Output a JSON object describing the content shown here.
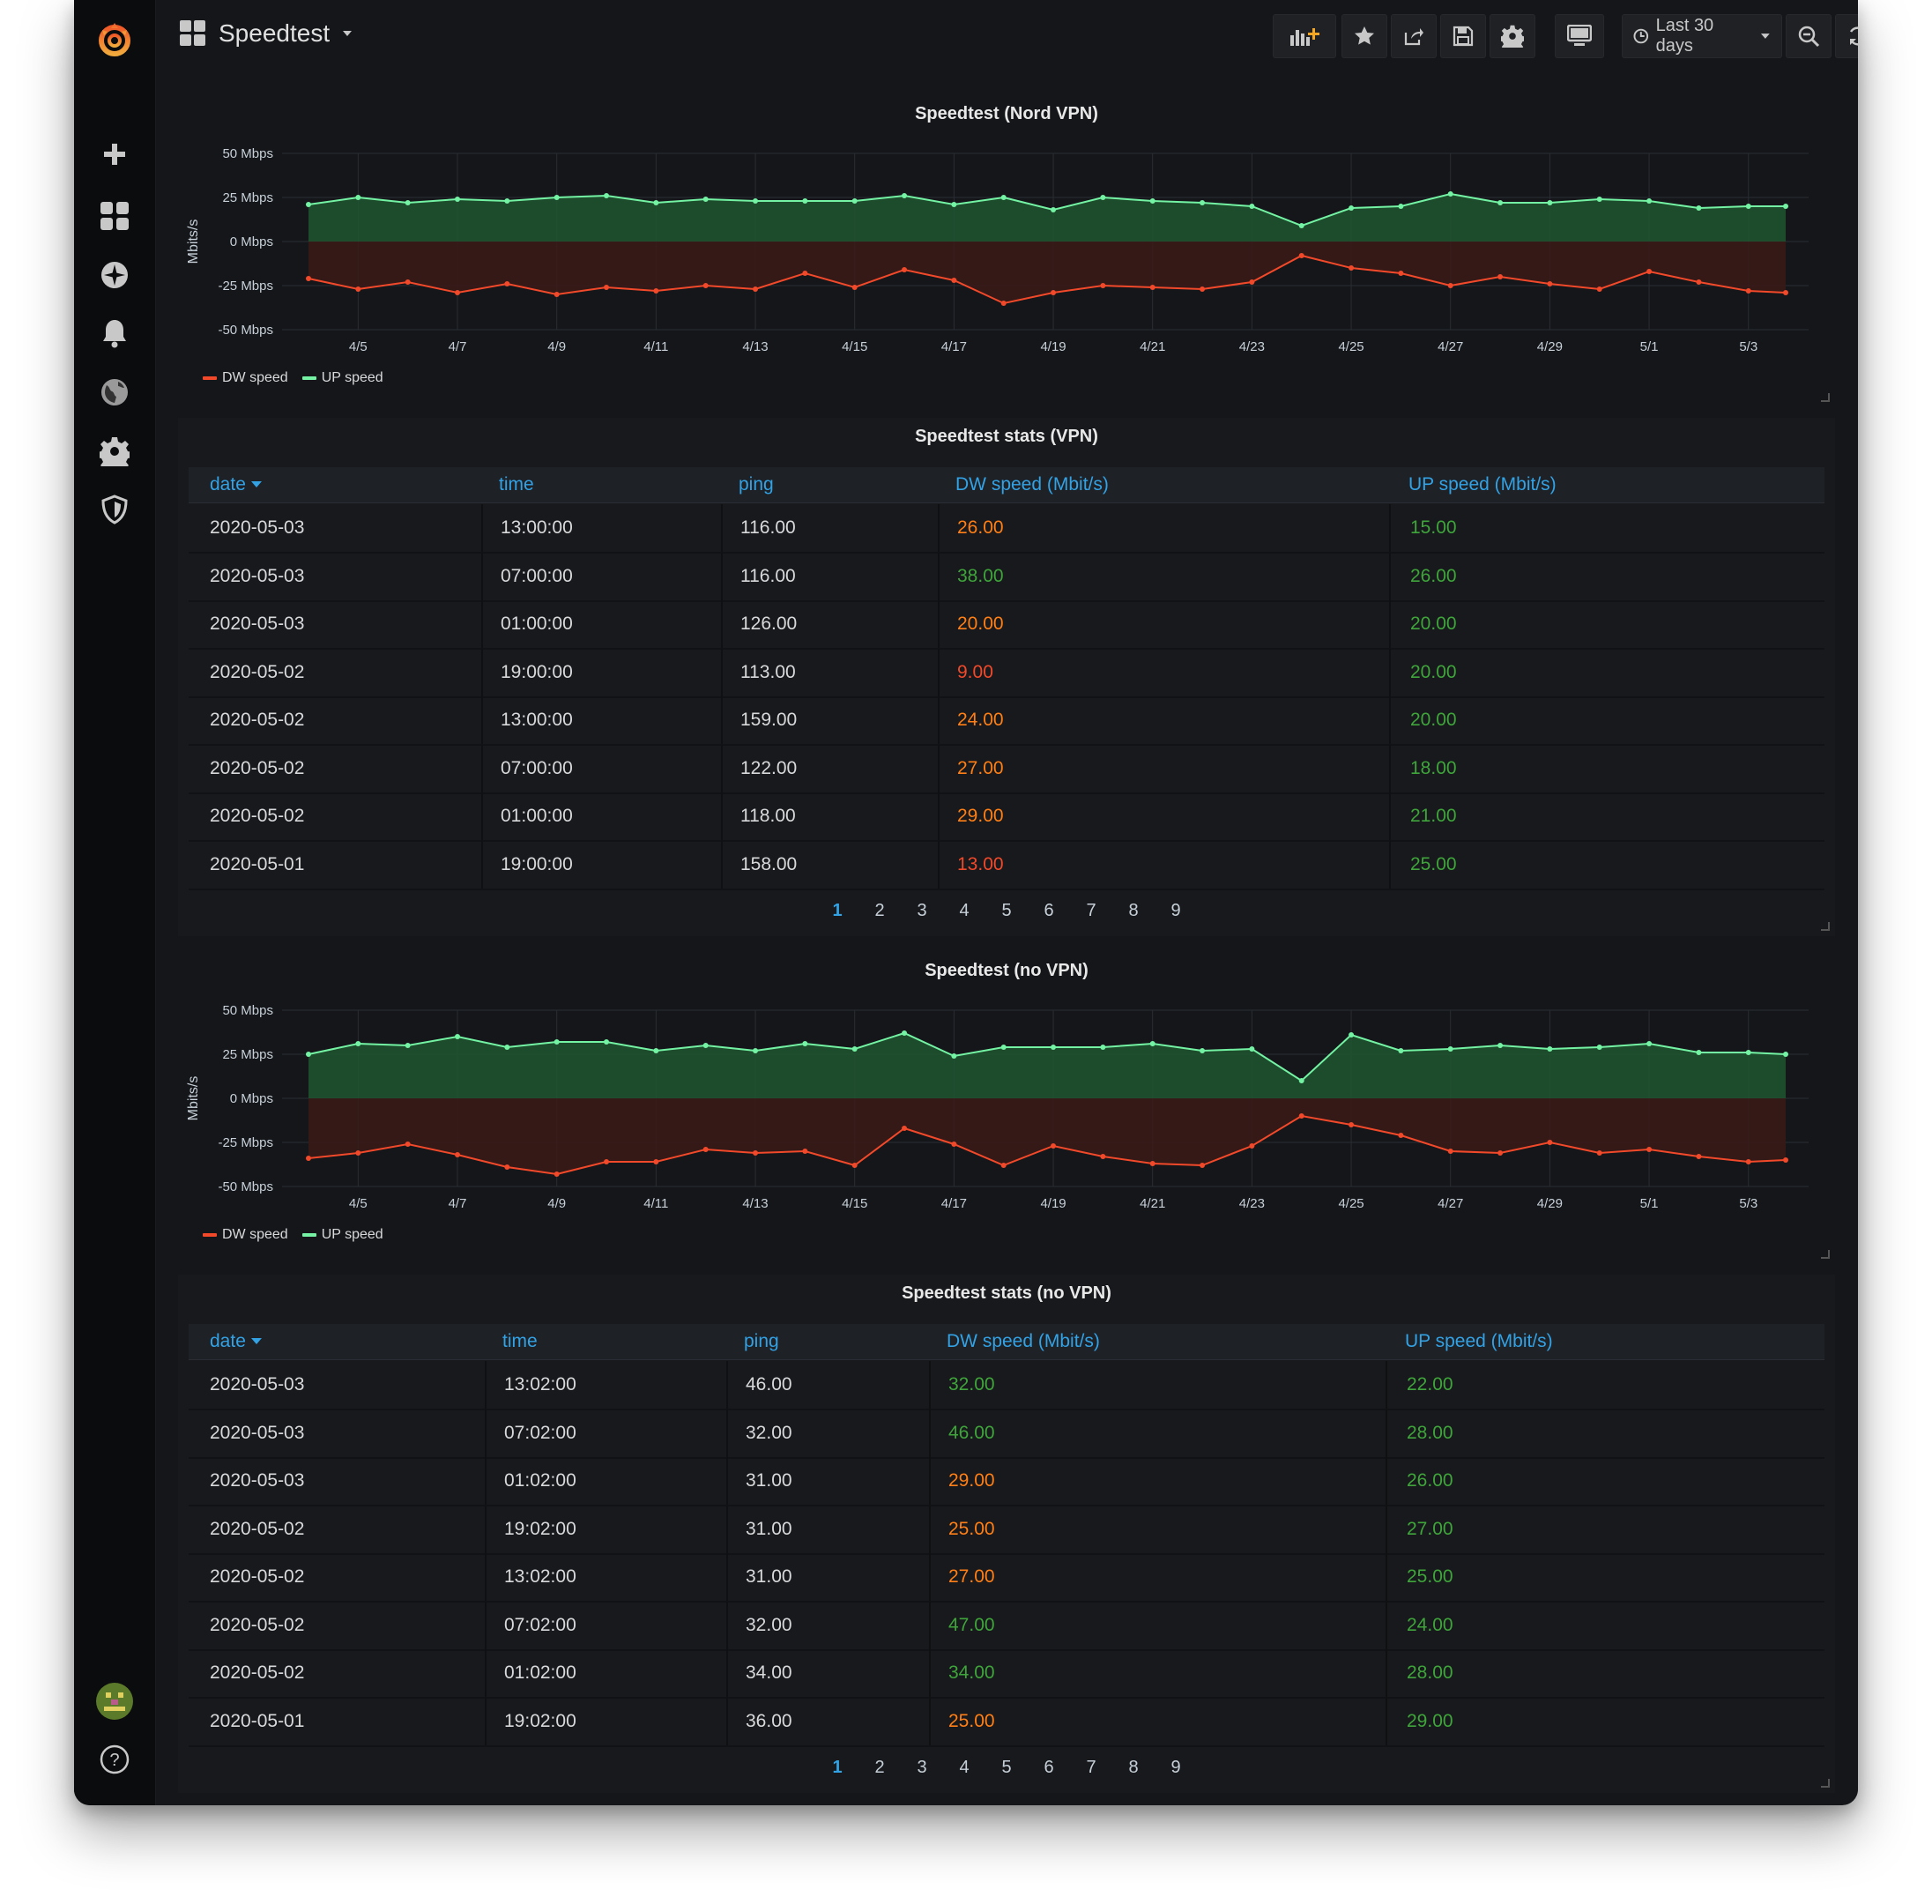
{
  "topbar": {
    "dashboard_title": "Speedtest",
    "time_range": "Last 30 days"
  },
  "panels": {
    "chart_vpn": {
      "title": "Speedtest (Nord VPN)",
      "ylabel": "Mbits/s"
    },
    "table_vpn": {
      "title": "Speedtest stats (VPN)"
    },
    "chart_novpn": {
      "title": "Speedtest (no VPN)",
      "ylabel": "Mbits/s"
    },
    "table_novpn": {
      "title": "Speedtest stats (no VPN)"
    }
  },
  "legend": {
    "dw": "DW speed",
    "up": "UP speed"
  },
  "colors": {
    "dw_line": "#f2492a",
    "up_line": "#73f3a3",
    "dw_fill": "#3a1a17",
    "up_fill": "#1e5630",
    "link": "#33a2e5",
    "val_orange": "#ff7f16",
    "val_red": "#f2492a",
    "val_green": "#3fa53b"
  },
  "table_headers": {
    "date": "date",
    "time": "time",
    "ping": "ping",
    "dw": "DW speed (Mbit/s)",
    "up": "UP speed (Mbit/s)"
  },
  "tables": {
    "vpn": [
      {
        "date": "2020-05-03",
        "time": "13:00:00",
        "ping": "116.00",
        "dw": "26.00",
        "dw_color": "orange",
        "up": "15.00"
      },
      {
        "date": "2020-05-03",
        "time": "07:00:00",
        "ping": "116.00",
        "dw": "38.00",
        "dw_color": "green",
        "up": "26.00"
      },
      {
        "date": "2020-05-03",
        "time": "01:00:00",
        "ping": "126.00",
        "dw": "20.00",
        "dw_color": "orange",
        "up": "20.00"
      },
      {
        "date": "2020-05-02",
        "time": "19:00:00",
        "ping": "113.00",
        "dw": "9.00",
        "dw_color": "red",
        "up": "20.00"
      },
      {
        "date": "2020-05-02",
        "time": "13:00:00",
        "ping": "159.00",
        "dw": "24.00",
        "dw_color": "orange",
        "up": "20.00"
      },
      {
        "date": "2020-05-02",
        "time": "07:00:00",
        "ping": "122.00",
        "dw": "27.00",
        "dw_color": "orange",
        "up": "18.00"
      },
      {
        "date": "2020-05-02",
        "time": "01:00:00",
        "ping": "118.00",
        "dw": "29.00",
        "dw_color": "orange",
        "up": "21.00"
      },
      {
        "date": "2020-05-01",
        "time": "19:00:00",
        "ping": "158.00",
        "dw": "13.00",
        "dw_color": "red",
        "up": "25.00"
      }
    ],
    "novpn": [
      {
        "date": "2020-05-03",
        "time": "13:02:00",
        "ping": "46.00",
        "dw": "32.00",
        "dw_color": "green",
        "up": "22.00"
      },
      {
        "date": "2020-05-03",
        "time": "07:02:00",
        "ping": "32.00",
        "dw": "46.00",
        "dw_color": "green",
        "up": "28.00"
      },
      {
        "date": "2020-05-03",
        "time": "01:02:00",
        "ping": "31.00",
        "dw": "29.00",
        "dw_color": "orange",
        "up": "26.00"
      },
      {
        "date": "2020-05-02",
        "time": "19:02:00",
        "ping": "31.00",
        "dw": "25.00",
        "dw_color": "orange",
        "up": "27.00"
      },
      {
        "date": "2020-05-02",
        "time": "13:02:00",
        "ping": "31.00",
        "dw": "27.00",
        "dw_color": "orange",
        "up": "25.00"
      },
      {
        "date": "2020-05-02",
        "time": "07:02:00",
        "ping": "32.00",
        "dw": "47.00",
        "dw_color": "green",
        "up": "24.00"
      },
      {
        "date": "2020-05-02",
        "time": "01:02:00",
        "ping": "34.00",
        "dw": "34.00",
        "dw_color": "green",
        "up": "28.00"
      },
      {
        "date": "2020-05-01",
        "time": "19:02:00",
        "ping": "36.00",
        "dw": "25.00",
        "dw_color": "orange",
        "up": "29.00"
      }
    ]
  },
  "pagination": [
    "1",
    "2",
    "3",
    "4",
    "5",
    "6",
    "7",
    "8",
    "9"
  ],
  "chart_data": [
    {
      "type": "area",
      "title": "Speedtest (Nord VPN)",
      "ylabel": "Mbits/s",
      "ylim": [
        -50,
        50
      ],
      "yticks": [
        "50 Mbps",
        "25 Mbps",
        "0 Mbps",
        "-25 Mbps",
        "-50 Mbps"
      ],
      "ytick_values": [
        50,
        25,
        0,
        -25,
        -50
      ],
      "x_start_day": 4.0,
      "x_end_day": 33.75,
      "xticks": [
        "4/5",
        "4/7",
        "4/9",
        "4/11",
        "4/13",
        "4/15",
        "4/17",
        "4/19",
        "4/21",
        "4/23",
        "4/25",
        "4/27",
        "4/29",
        "5/1",
        "5/3"
      ],
      "xtick_days": [
        5,
        7,
        9,
        11,
        13,
        15,
        17,
        19,
        21,
        23,
        25,
        27,
        29,
        31,
        33
      ],
      "point_days": [
        4,
        5,
        6,
        7,
        8,
        9,
        10,
        11,
        12,
        13,
        14,
        15,
        16,
        17,
        18,
        19,
        20,
        21,
        22,
        23,
        24,
        25,
        26,
        27,
        28,
        29,
        30,
        31,
        32,
        33,
        33.75
      ],
      "series": [
        {
          "name": "UP speed",
          "values": [
            21,
            25,
            22,
            24,
            23,
            25,
            26,
            22,
            24,
            23,
            23,
            23,
            26,
            21,
            25,
            18,
            25,
            23,
            22,
            20,
            9,
            19,
            20,
            27,
            22,
            22,
            24,
            23,
            19,
            20,
            20
          ]
        },
        {
          "name": "DW speed",
          "values": [
            -21,
            -27,
            -23,
            -29,
            -24,
            -30,
            -26,
            -28,
            -25,
            -27,
            -18,
            -26,
            -16,
            -22,
            -35,
            -29,
            -25,
            -26,
            -27,
            -23,
            -8,
            -15,
            -18,
            -25,
            -20,
            -24,
            -27,
            -17,
            -23,
            -28,
            -29
          ]
        }
      ],
      "legend": "bottom-left",
      "grid": true
    },
    {
      "type": "area",
      "title": "Speedtest (no VPN)",
      "ylabel": "Mbits/s",
      "ylim": [
        -50,
        50
      ],
      "yticks": [
        "50 Mbps",
        "25 Mbps",
        "0 Mbps",
        "-25 Mbps",
        "-50 Mbps"
      ],
      "ytick_values": [
        50,
        25,
        0,
        -25,
        -50
      ],
      "x_start_day": 4.0,
      "x_end_day": 33.75,
      "xticks": [
        "4/5",
        "4/7",
        "4/9",
        "4/11",
        "4/13",
        "4/15",
        "4/17",
        "4/19",
        "4/21",
        "4/23",
        "4/25",
        "4/27",
        "4/29",
        "5/1",
        "5/3"
      ],
      "xtick_days": [
        5,
        7,
        9,
        11,
        13,
        15,
        17,
        19,
        21,
        23,
        25,
        27,
        29,
        31,
        33
      ],
      "point_days": [
        4,
        5,
        6,
        7,
        8,
        9,
        10,
        11,
        12,
        13,
        14,
        15,
        16,
        17,
        18,
        19,
        20,
        21,
        22,
        23,
        24,
        25,
        26,
        27,
        28,
        29,
        30,
        31,
        32,
        33,
        33.75
      ],
      "series": [
        {
          "name": "UP speed",
          "values": [
            25,
            31,
            30,
            35,
            29,
            32,
            32,
            27,
            30,
            27,
            31,
            28,
            37,
            24,
            29,
            29,
            29,
            31,
            27,
            28,
            10,
            36,
            27,
            28,
            30,
            28,
            29,
            31,
            26,
            26,
            25
          ]
        },
        {
          "name": "DW speed",
          "values": [
            -34,
            -31,
            -26,
            -32,
            -39,
            -43,
            -36,
            -36,
            -29,
            -31,
            -30,
            -38,
            -17,
            -26,
            -38,
            -27,
            -33,
            -37,
            -38,
            -27,
            -10,
            -15,
            -21,
            -30,
            -31,
            -25,
            -31,
            -29,
            -33,
            -36,
            -35
          ]
        }
      ],
      "legend": "bottom-left",
      "grid": true
    }
  ]
}
